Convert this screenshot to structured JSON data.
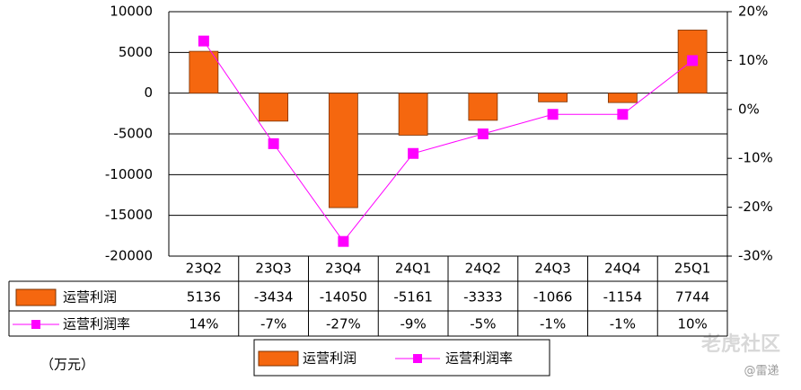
{
  "chart_data": {
    "type": "bar-line-table",
    "categories": [
      "23Q2",
      "23Q3",
      "23Q4",
      "24Q1",
      "24Q2",
      "24Q3",
      "24Q4",
      "25Q1"
    ],
    "series": [
      {
        "name": "运营利润",
        "color": "#f5670f",
        "type": "bar",
        "values": [
          5136,
          -3434,
          -14050,
          -5161,
          -3333,
          -1066,
          -1154,
          7744
        ]
      },
      {
        "name": "运营利润率",
        "color": "#ff00ff",
        "type": "line",
        "axis": "y2",
        "values": [
          14,
          -7,
          -27,
          -9,
          -5,
          -1,
          -1,
          10
        ],
        "value_labels": [
          "14%",
          "-7%",
          "-27%",
          "-9%",
          "-5%",
          "-1%",
          "-1%",
          "10%"
        ]
      }
    ],
    "ylim": [
      -20000,
      10000
    ],
    "yticks": [
      -20000,
      -15000,
      -10000,
      -5000,
      0,
      5000,
      10000
    ],
    "y2lim": [
      -30,
      20
    ],
    "y2ticks": [
      {
        "value": -30,
        "label": "-30%"
      },
      {
        "value": -20,
        "label": "-20%"
      },
      {
        "value": -10,
        "label": "-10%"
      },
      {
        "value": 0,
        "label": "0%"
      },
      {
        "value": 10,
        "label": "10%"
      },
      {
        "value": 20,
        "label": "20%"
      }
    ],
    "grid": true,
    "unit_label": "（万元）",
    "watermark": "老虎社区",
    "watermark_sub": "@雷递"
  }
}
